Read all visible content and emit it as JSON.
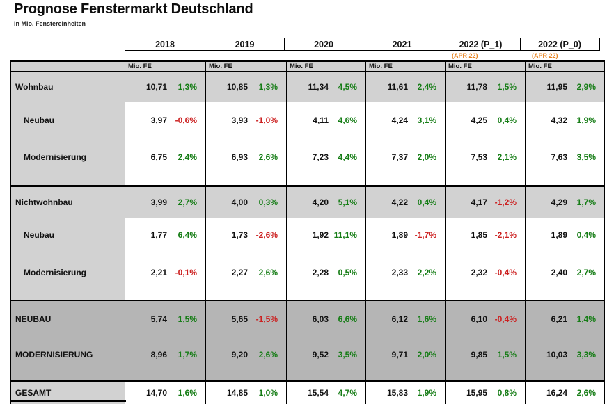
{
  "header": {
    "title": "Prognose Fenstermarkt Deutschland",
    "subtitle": "in Mio. Fenstereinheiten"
  },
  "colors": {
    "positive_pct": "#167d16",
    "negative_pct": "#cc2020",
    "note_orange": "#e8821e",
    "row_light_gray": "#d2d2d2",
    "row_dark_gray": "#b5b5b5"
  },
  "table": {
    "unit_label": "Mio. FE",
    "columns": [
      {
        "year": "2018",
        "note": ""
      },
      {
        "year": "2019",
        "note": ""
      },
      {
        "year": "2020",
        "note": ""
      },
      {
        "year": "2021",
        "note": ""
      },
      {
        "year": "2022 (P_1)",
        "note": "(APR 22)"
      },
      {
        "year": "2022 (P_0)",
        "note": "(APR 22)"
      }
    ],
    "blocks": [
      {
        "shade": "light",
        "rows": [
          {
            "label": "Wohnbau",
            "variant": "group",
            "values": [
              "10,71",
              "10,85",
              "11,34",
              "11,61",
              "11,78",
              "11,95"
            ],
            "changes": [
              "1,3%",
              "1,3%",
              "4,5%",
              "2,4%",
              "1,5%",
              "2,9%"
            ]
          },
          {
            "label": "Neubau",
            "variant": "sub",
            "values": [
              "3,97",
              "3,93",
              "4,11",
              "4,24",
              "4,25",
              "4,32"
            ],
            "changes": [
              "-0,6%",
              "-1,0%",
              "4,6%",
              "3,1%",
              "0,4%",
              "1,9%"
            ]
          },
          {
            "label": "Modernisierung",
            "variant": "sub",
            "values": [
              "6,75",
              "6,93",
              "7,23",
              "7,37",
              "7,53",
              "7,63"
            ],
            "changes": [
              "2,4%",
              "2,6%",
              "4,4%",
              "2,0%",
              "2,1%",
              "3,5%"
            ]
          }
        ]
      },
      {
        "shade": "light",
        "rows": [
          {
            "label": "Nichtwohnbau",
            "variant": "group",
            "values": [
              "3,99",
              "4,00",
              "4,20",
              "4,22",
              "4,17",
              "4,29"
            ],
            "changes": [
              "2,7%",
              "0,3%",
              "5,1%",
              "0,4%",
              "-1,2%",
              "1,7%"
            ]
          },
          {
            "label": "Neubau",
            "variant": "sub",
            "values": [
              "1,77",
              "1,73",
              "1,92",
              "1,89",
              "1,85",
              "1,89"
            ],
            "changes": [
              "6,4%",
              "-2,6%",
              "11,1%",
              "-1,7%",
              "-2,1%",
              "0,4%"
            ]
          },
          {
            "label": "Modernisierung",
            "variant": "sub",
            "values": [
              "2,21",
              "2,27",
              "2,28",
              "2,33",
              "2,32",
              "2,40"
            ],
            "changes": [
              "-0,1%",
              "2,6%",
              "0,5%",
              "2,2%",
              "-0,4%",
              "2,7%"
            ]
          }
        ]
      },
      {
        "shade": "dark",
        "rows": [
          {
            "label": "NEUBAU",
            "variant": "summary",
            "values": [
              "5,74",
              "5,65",
              "6,03",
              "6,12",
              "6,10",
              "6,21"
            ],
            "changes": [
              "1,5%",
              "-1,5%",
              "6,6%",
              "1,6%",
              "-0,4%",
              "1,4%"
            ]
          },
          {
            "label": "MODERNISIERUNG",
            "variant": "summary",
            "values": [
              "8,96",
              "9,20",
              "9,52",
              "9,71",
              "9,85",
              "10,03"
            ],
            "changes": [
              "1,7%",
              "2,6%",
              "3,5%",
              "2,0%",
              "1,5%",
              "3,3%"
            ]
          }
        ]
      },
      {
        "shade": "total",
        "rows": [
          {
            "label": "GESAMT",
            "variant": "total",
            "values": [
              "14,70",
              "14,85",
              "15,54",
              "15,83",
              "15,95",
              "16,24"
            ],
            "changes": [
              "1,6%",
              "1,0%",
              "4,7%",
              "1,9%",
              "0,8%",
              "2,6%"
            ]
          }
        ]
      }
    ]
  }
}
